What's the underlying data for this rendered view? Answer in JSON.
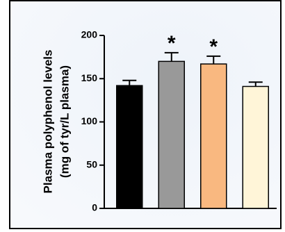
{
  "chart_data": {
    "type": "bar",
    "y_label_lines": [
      "Plasma polyphenol levels",
      "(mg of tyr/L plasma)"
    ],
    "categories": [
      null,
      null,
      null,
      null
    ],
    "values": [
      142,
      170,
      167,
      141
    ],
    "errors": [
      6,
      10,
      9,
      5
    ],
    "colors": [
      "#000000",
      "#999999",
      "#f9b880",
      "#fff5d8"
    ],
    "annotations": [
      null,
      "*",
      "*",
      null
    ],
    "ylim": [
      0,
      200
    ],
    "yticks": [
      0,
      50,
      100,
      150,
      200
    ],
    "grid": false
  }
}
